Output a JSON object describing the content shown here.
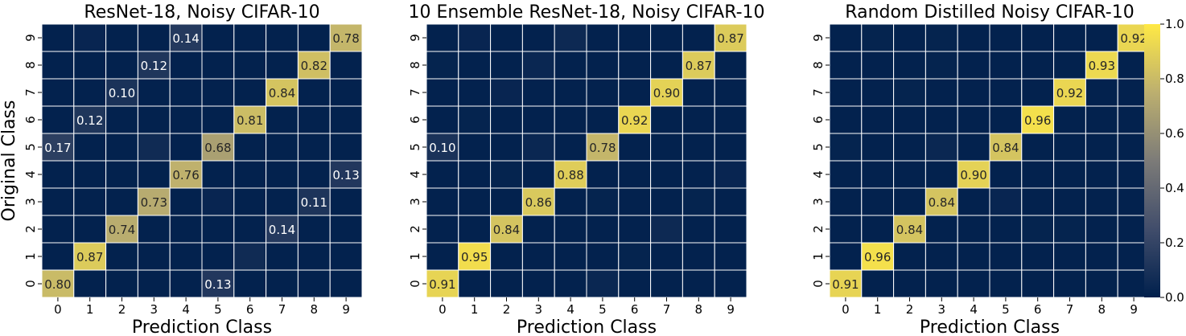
{
  "shared": {
    "xlabel": "Prediction Class",
    "ylabel": "Original Class",
    "ticks": [
      "0",
      "1",
      "2",
      "3",
      "4",
      "5",
      "6",
      "7",
      "8",
      "9"
    ]
  },
  "colorbar": {
    "ticks": [
      "0.0",
      "0.2",
      "0.4",
      "0.6",
      "0.8",
      "1.0"
    ],
    "tick_values": [
      0.0,
      0.2,
      0.4,
      0.6,
      0.8,
      1.0
    ],
    "range": [
      0,
      1
    ],
    "colormap": "cividis"
  },
  "chart_data": [
    {
      "type": "heatmap",
      "title": "ResNet-18, Noisy CIFAR-10",
      "xlabel": "Prediction Class",
      "ylabel": "Original Class",
      "row_order": "original class 9 at top, 0 at bottom",
      "matrix": [
        [
          0.8,
          0.01,
          0.01,
          0.01,
          0.01,
          0.13,
          0.01,
          0.01,
          0.01,
          0.01
        ],
        [
          0.01,
          0.87,
          0.01,
          0.01,
          0.01,
          0.01,
          0.06,
          0.01,
          0.01,
          0.01
        ],
        [
          0.01,
          0.01,
          0.74,
          0.01,
          0.01,
          0.01,
          0.01,
          0.14,
          0.01,
          0.01
        ],
        [
          0.01,
          0.01,
          0.01,
          0.73,
          0.01,
          0.03,
          0.01,
          0.01,
          0.11,
          0.01
        ],
        [
          0.01,
          0.01,
          0.01,
          0.01,
          0.76,
          0.01,
          0.01,
          0.01,
          0.01,
          0.13
        ],
        [
          0.17,
          0.01,
          0.01,
          0.06,
          0.01,
          0.68,
          0.01,
          0.01,
          0.01,
          0.01
        ],
        [
          0.01,
          0.12,
          0.01,
          0.01,
          0.01,
          0.01,
          0.81,
          0.01,
          0.01,
          0.01
        ],
        [
          0.01,
          0.01,
          0.1,
          0.01,
          0.01,
          0.01,
          0.01,
          0.84,
          0.01,
          0.01
        ],
        [
          0.01,
          0.01,
          0.01,
          0.12,
          0.01,
          0.01,
          0.01,
          0.01,
          0.82,
          0.01
        ],
        [
          0.01,
          0.03,
          0.01,
          0.01,
          0.14,
          0.01,
          0.01,
          0.01,
          0.01,
          0.78
        ]
      ],
      "labels": [
        {
          "r": 0,
          "c": 0,
          "text": "0.80"
        },
        {
          "r": 0,
          "c": 5,
          "text": "0.13"
        },
        {
          "r": 1,
          "c": 1,
          "text": "0.87"
        },
        {
          "r": 2,
          "c": 2,
          "text": "0.74"
        },
        {
          "r": 2,
          "c": 7,
          "text": "0.14"
        },
        {
          "r": 3,
          "c": 3,
          "text": "0.73"
        },
        {
          "r": 3,
          "c": 8,
          "text": "0.11"
        },
        {
          "r": 4,
          "c": 4,
          "text": "0.76"
        },
        {
          "r": 4,
          "c": 9,
          "text": "0.13"
        },
        {
          "r": 5,
          "c": 0,
          "text": "0.17"
        },
        {
          "r": 5,
          "c": 5,
          "text": "0.68"
        },
        {
          "r": 6,
          "c": 1,
          "text": "0.12"
        },
        {
          "r": 6,
          "c": 6,
          "text": "0.81"
        },
        {
          "r": 7,
          "c": 2,
          "text": "0.10"
        },
        {
          "r": 7,
          "c": 7,
          "text": "0.84"
        },
        {
          "r": 8,
          "c": 3,
          "text": "0.12"
        },
        {
          "r": 8,
          "c": 8,
          "text": "0.82"
        },
        {
          "r": 9,
          "c": 4,
          "text": "0.14"
        },
        {
          "r": 9,
          "c": 9,
          "text": "0.78"
        }
      ]
    },
    {
      "type": "heatmap",
      "title": "10 Ensemble ResNet-18, Noisy CIFAR-10",
      "xlabel": "Prediction Class",
      "ylabel": "",
      "row_order": "original class 9 at top, 0 at bottom",
      "matrix": [
        [
          0.91,
          0.01,
          0.01,
          0.01,
          0.01,
          0.04,
          0.01,
          0.01,
          0.01,
          0.01
        ],
        [
          0.01,
          0.95,
          0.01,
          0.01,
          0.01,
          0.01,
          0.02,
          0.01,
          0.01,
          0.01
        ],
        [
          0.01,
          0.01,
          0.84,
          0.01,
          0.01,
          0.01,
          0.01,
          0.05,
          0.01,
          0.01
        ],
        [
          0.01,
          0.01,
          0.01,
          0.86,
          0.01,
          0.02,
          0.01,
          0.01,
          0.02,
          0.01
        ],
        [
          0.01,
          0.01,
          0.02,
          0.01,
          0.88,
          0.01,
          0.01,
          0.01,
          0.01,
          0.03
        ],
        [
          0.1,
          0.01,
          0.01,
          0.04,
          0.01,
          0.78,
          0.01,
          0.01,
          0.01,
          0.01
        ],
        [
          0.01,
          0.02,
          0.01,
          0.01,
          0.01,
          0.01,
          0.92,
          0.01,
          0.01,
          0.01
        ],
        [
          0.01,
          0.01,
          0.03,
          0.01,
          0.01,
          0.01,
          0.01,
          0.9,
          0.01,
          0.01
        ],
        [
          0.02,
          0.01,
          0.01,
          0.04,
          0.01,
          0.01,
          0.01,
          0.01,
          0.87,
          0.01
        ],
        [
          0.01,
          0.03,
          0.01,
          0.01,
          0.05,
          0.01,
          0.01,
          0.01,
          0.01,
          0.87
        ]
      ],
      "labels": [
        {
          "r": 0,
          "c": 0,
          "text": "0.91"
        },
        {
          "r": 1,
          "c": 1,
          "text": "0.95"
        },
        {
          "r": 2,
          "c": 2,
          "text": "0.84"
        },
        {
          "r": 3,
          "c": 3,
          "text": "0.86"
        },
        {
          "r": 4,
          "c": 4,
          "text": "0.88"
        },
        {
          "r": 5,
          "c": 0,
          "text": "0.10"
        },
        {
          "r": 5,
          "c": 5,
          "text": "0.78"
        },
        {
          "r": 6,
          "c": 6,
          "text": "0.92"
        },
        {
          "r": 7,
          "c": 7,
          "text": "0.90"
        },
        {
          "r": 8,
          "c": 8,
          "text": "0.87"
        },
        {
          "r": 9,
          "c": 9,
          "text": "0.87"
        }
      ]
    },
    {
      "type": "heatmap",
      "title": "Random Distilled Noisy CIFAR-10",
      "xlabel": "Prediction Class",
      "ylabel": "",
      "row_order": "original class 9 at top, 0 at bottom",
      "matrix": [
        [
          0.91,
          0.01,
          0.01,
          0.01,
          0.01,
          0.01,
          0.01,
          0.01,
          0.01,
          0.01
        ],
        [
          0.01,
          0.96,
          0.01,
          0.01,
          0.01,
          0.01,
          0.01,
          0.01,
          0.01,
          0.01
        ],
        [
          0.01,
          0.01,
          0.84,
          0.01,
          0.01,
          0.01,
          0.02,
          0.02,
          0.01,
          0.01
        ],
        [
          0.01,
          0.01,
          0.01,
          0.84,
          0.01,
          0.03,
          0.01,
          0.01,
          0.01,
          0.01
        ],
        [
          0.01,
          0.01,
          0.01,
          0.01,
          0.9,
          0.01,
          0.01,
          0.01,
          0.01,
          0.01
        ],
        [
          0.02,
          0.01,
          0.01,
          0.04,
          0.01,
          0.84,
          0.01,
          0.01,
          0.01,
          0.01
        ],
        [
          0.01,
          0.01,
          0.01,
          0.01,
          0.01,
          0.01,
          0.96,
          0.01,
          0.01,
          0.01
        ],
        [
          0.01,
          0.01,
          0.02,
          0.01,
          0.01,
          0.01,
          0.01,
          0.92,
          0.01,
          0.01
        ],
        [
          0.01,
          0.01,
          0.01,
          0.02,
          0.01,
          0.01,
          0.01,
          0.01,
          0.93,
          0.01
        ],
        [
          0.01,
          0.02,
          0.01,
          0.02,
          0.01,
          0.01,
          0.01,
          0.01,
          0.01,
          0.92
        ]
      ],
      "labels": [
        {
          "r": 0,
          "c": 0,
          "text": "0.91"
        },
        {
          "r": 1,
          "c": 1,
          "text": "0.96"
        },
        {
          "r": 2,
          "c": 2,
          "text": "0.84"
        },
        {
          "r": 3,
          "c": 3,
          "text": "0.84"
        },
        {
          "r": 4,
          "c": 4,
          "text": "0.90"
        },
        {
          "r": 5,
          "c": 5,
          "text": "0.84"
        },
        {
          "r": 6,
          "c": 6,
          "text": "0.96"
        },
        {
          "r": 7,
          "c": 7,
          "text": "0.92"
        },
        {
          "r": 8,
          "c": 8,
          "text": "0.93"
        },
        {
          "r": 9,
          "c": 9,
          "text": "0.92"
        }
      ]
    }
  ]
}
